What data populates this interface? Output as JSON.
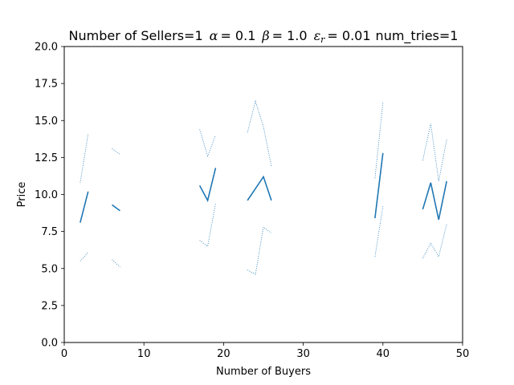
{
  "chart_data": {
    "type": "line",
    "title_parts": {
      "sellers": "Number of Sellers=1",
      "alpha_symbol": "α",
      "alpha_value": "= 0.1",
      "beta_symbol": "β",
      "beta_value": "= 1.0",
      "eps_symbol": "ε",
      "eps_sub": "r",
      "eps_value": "= 0.01",
      "tries": "num_tries=1"
    },
    "xlabel": "Number of Buyers",
    "ylabel": "Price",
    "xlim": [
      0,
      50
    ],
    "ylim": [
      0,
      20
    ],
    "xticks": [
      0,
      10,
      20,
      30,
      40,
      50
    ],
    "yticks": [
      0.0,
      2.5,
      5.0,
      7.5,
      10.0,
      12.5,
      15.0,
      17.5,
      20.0
    ],
    "ytick_labels": [
      "0.0",
      "2.5",
      "5.0",
      "7.5",
      "10.0",
      "12.5",
      "15.0",
      "17.5",
      "20.0"
    ],
    "grid": false,
    "line_color": "#1f77b4",
    "series": [
      {
        "style": "solid",
        "segments": [
          [
            [
              2,
              8.1
            ],
            [
              3,
              10.2
            ]
          ],
          [
            [
              6,
              9.3
            ],
            [
              7,
              8.9
            ]
          ],
          [
            [
              17,
              10.6
            ],
            [
              18,
              9.6
            ],
            [
              19,
              11.8
            ]
          ],
          [
            [
              23,
              9.6
            ],
            [
              25,
              11.2
            ],
            [
              26,
              9.6
            ]
          ],
          [
            [
              39,
              8.4
            ],
            [
              40,
              12.8
            ]
          ],
          [
            [
              45,
              9.0
            ],
            [
              46,
              10.8
            ],
            [
              47,
              8.3
            ],
            [
              48,
              10.9
            ]
          ]
        ]
      },
      {
        "style": "dotted",
        "segments": [
          [
            [
              2,
              10.8
            ],
            [
              3,
              14.1
            ]
          ],
          [
            [
              6,
              13.1
            ],
            [
              7,
              12.7
            ]
          ],
          [
            [
              17,
              14.4
            ],
            [
              18,
              12.6
            ],
            [
              19,
              14.0
            ]
          ],
          [
            [
              23,
              14.2
            ],
            [
              24,
              16.3
            ],
            [
              25,
              14.6
            ],
            [
              26,
              11.9
            ]
          ],
          [
            [
              39,
              11.1
            ],
            [
              40,
              16.2
            ]
          ],
          [
            [
              45,
              12.3
            ],
            [
              46,
              14.8
            ],
            [
              47,
              10.9
            ],
            [
              48,
              13.7
            ]
          ]
        ]
      },
      {
        "style": "dotted",
        "segments": [
          [
            [
              2,
              5.5
            ],
            [
              3,
              6.1
            ]
          ],
          [
            [
              6,
              5.6
            ],
            [
              7,
              5.1
            ]
          ],
          [
            [
              17,
              6.9
            ],
            [
              18,
              6.5
            ],
            [
              19,
              9.4
            ]
          ],
          [
            [
              23,
              4.9
            ],
            [
              24,
              4.6
            ],
            [
              25,
              7.8
            ],
            [
              26,
              7.4
            ]
          ],
          [
            [
              39,
              5.8
            ],
            [
              40,
              9.2
            ]
          ],
          [
            [
              45,
              5.7
            ],
            [
              46,
              6.7
            ],
            [
              47,
              5.8
            ],
            [
              48,
              8.0
            ]
          ]
        ]
      }
    ]
  }
}
